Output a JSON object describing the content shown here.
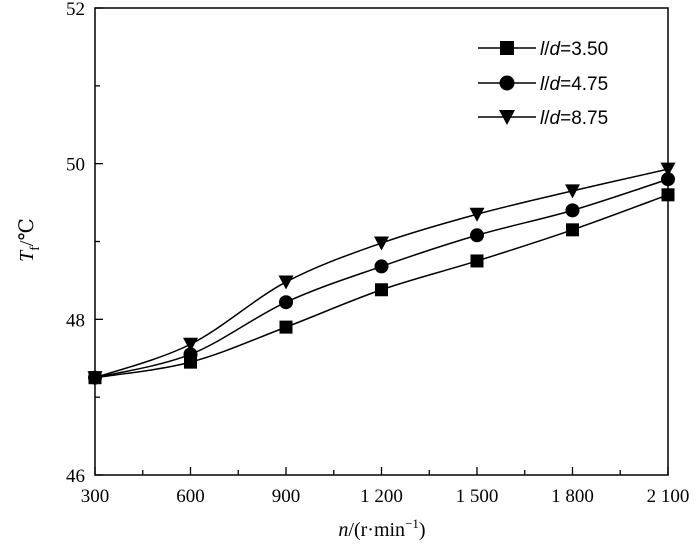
{
  "chart_data": {
    "type": "line",
    "x": [
      300,
      600,
      900,
      1200,
      1500,
      1800,
      2100
    ],
    "x_tick_labels": [
      "300",
      "600",
      "900",
      "1 200",
      "1 500",
      "1 800",
      "2 100"
    ],
    "y_ticks": [
      46,
      48,
      50,
      52
    ],
    "y_tick_labels": [
      "46",
      "48",
      "50",
      "52"
    ],
    "xlim": [
      300,
      2100
    ],
    "ylim": [
      46,
      52
    ],
    "xlabel": {
      "var": "n",
      "unit": "/(r·min",
      "exp": "−1",
      "close": ")"
    },
    "ylabel": {
      "var": "T",
      "sub": "f",
      "unit": "/℃"
    },
    "grid": false,
    "legend_position": "top-right",
    "series": [
      {
        "key": "s1",
        "name": "l/d=3.50",
        "legend_var": "l",
        "legend_sep": "/",
        "legend_var2": "d",
        "legend_val": "=3.50",
        "marker": "square",
        "values": [
          47.25,
          47.45,
          47.9,
          48.38,
          48.75,
          49.15,
          49.6
        ]
      },
      {
        "key": "s2",
        "name": "l/d=4.75",
        "legend_var": "l",
        "legend_sep": "/",
        "legend_var2": "d",
        "legend_val": "=4.75",
        "marker": "circle",
        "values": [
          47.25,
          47.55,
          48.22,
          48.68,
          49.08,
          49.4,
          49.8
        ]
      },
      {
        "key": "s3",
        "name": "l/d=8.75",
        "legend_var": "l",
        "legend_sep": "/",
        "legend_var2": "d",
        "legend_val": "=8.75",
        "marker": "triangle-down",
        "values": [
          47.25,
          47.68,
          48.48,
          48.98,
          49.35,
          49.65,
          49.93
        ]
      }
    ]
  }
}
